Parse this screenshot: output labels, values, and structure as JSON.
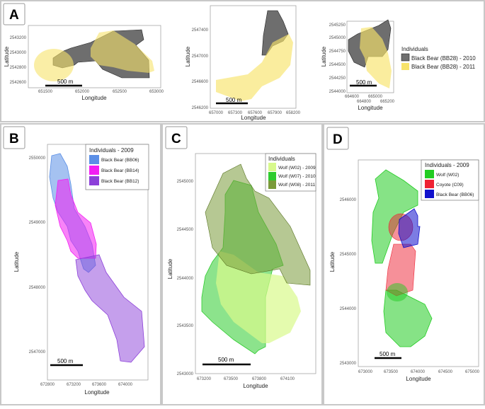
{
  "panels": {
    "A": {
      "label": "A",
      "maps": [
        {
          "xlabel": "Longitude",
          "ylabel": "Latitude",
          "scale": "500 m",
          "yticks": [
            "2543200",
            "2543000",
            "2542800",
            "2542600"
          ],
          "xticks": [
            "651500",
            "652000",
            "652500",
            "653000"
          ]
        },
        {
          "xlabel": "Longitude",
          "ylabel": "Latitude",
          "scale": "500 m",
          "yticks": [
            "2547400",
            "2547000",
            "2546600",
            "2546200"
          ],
          "xticks": [
            "657000",
            "657300",
            "657600",
            "657900",
            "658200"
          ]
        },
        {
          "xlabel": "Longitude",
          "ylabel": "Latitude",
          "scale": "500 m",
          "yticks": [
            "2545250",
            "2545000",
            "2544750",
            "2544500",
            "2544250",
            "2544000"
          ],
          "xticks": [
            "664600",
            "664800",
            "665000",
            "665200"
          ]
        }
      ],
      "legend": {
        "title": "Individuals",
        "items": [
          {
            "label": "Black Bear (BB28) - 2010",
            "color": "#6e6e6e"
          },
          {
            "label": "Black Bear (BB28) - 2011",
            "color": "#f7e36a"
          }
        ]
      }
    },
    "B": {
      "label": "B",
      "xlabel": "Longitude",
      "ylabel": "Latitude",
      "scale": "500 m",
      "yticks": [
        "2550000",
        "2549000",
        "2548000",
        "2547000"
      ],
      "xticks": [
        "672800",
        "673200",
        "673600",
        "674000"
      ],
      "legend": {
        "title": "Individuals - 2009",
        "items": [
          {
            "label": "Black Bear (BB06)",
            "color": "#5b8fe6"
          },
          {
            "label": "Black Bear (BB14)",
            "color": "#f21ef2"
          },
          {
            "label": "Black Bear (BB12)",
            "color": "#8c3fd9"
          }
        ]
      }
    },
    "C": {
      "label": "C",
      "xlabel": "Longitude",
      "ylabel": "Latitude",
      "scale": "500 m",
      "yticks": [
        "2545000",
        "2544500",
        "2544000",
        "2543500",
        "2543000"
      ],
      "xticks": [
        "673200",
        "673500",
        "673800",
        "674100"
      ],
      "legend": {
        "title": "Individuals",
        "items": [
          {
            "label": "Wolf (W02) - 2009",
            "color": "#d8f98c"
          },
          {
            "label": "Wolf (W07) - 2010",
            "color": "#2ecc2e"
          },
          {
            "label": "Wolf (W08) - 2011",
            "color": "#7a9a3a"
          }
        ]
      }
    },
    "D": {
      "label": "D",
      "xlabel": "Longitude",
      "ylabel": "Latitude",
      "scale": "500 m",
      "yticks": [
        "2546000",
        "2545000",
        "2544000",
        "2543000"
      ],
      "xticks": [
        "673000",
        "673500",
        "674000",
        "674500",
        "675000"
      ],
      "legend": {
        "title": "Individuals - 2009",
        "items": [
          {
            "label": "Wolf (W02)",
            "color": "#22cc22"
          },
          {
            "label": "Coyote (C09)",
            "color": "#ee2233"
          },
          {
            "label": "Black Bear (BB06)",
            "color": "#1111cc"
          }
        ]
      }
    }
  }
}
